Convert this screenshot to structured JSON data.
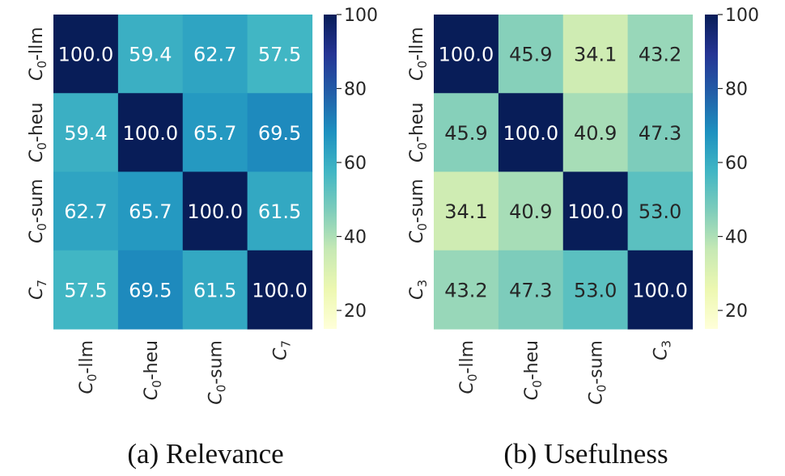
{
  "chart_data": [
    {
      "type": "heatmap",
      "caption": "(a) Relevance",
      "colormap": "YlGnBu",
      "clim": [
        15,
        100
      ],
      "colorbar_ticks": [
        20,
        40,
        60,
        80,
        100
      ],
      "labels": [
        {
          "base": "C",
          "sub": "0",
          "suffix": "-llm"
        },
        {
          "base": "C",
          "sub": "0",
          "suffix": "-heu"
        },
        {
          "base": "C",
          "sub": "0",
          "suffix": "-sum"
        },
        {
          "base": "C",
          "sub": "7",
          "suffix": ""
        }
      ],
      "values": [
        [
          100.0,
          59.4,
          62.7,
          57.5
        ],
        [
          59.4,
          100.0,
          65.7,
          69.5
        ],
        [
          62.7,
          65.7,
          100.0,
          61.5
        ],
        [
          57.5,
          69.5,
          61.5,
          100.0
        ]
      ]
    },
    {
      "type": "heatmap",
      "caption": "(b) Usefulness",
      "colormap": "YlGnBu",
      "clim": [
        15,
        100
      ],
      "colorbar_ticks": [
        20,
        40,
        60,
        80,
        100
      ],
      "labels": [
        {
          "base": "C",
          "sub": "0",
          "suffix": "-llm"
        },
        {
          "base": "C",
          "sub": "0",
          "suffix": "-heu"
        },
        {
          "base": "C",
          "sub": "0",
          "suffix": "-sum"
        },
        {
          "base": "C",
          "sub": "3",
          "suffix": ""
        }
      ],
      "values": [
        [
          100.0,
          45.9,
          34.1,
          43.2
        ],
        [
          45.9,
          100.0,
          40.9,
          47.3
        ],
        [
          34.1,
          40.9,
          100.0,
          53.0
        ],
        [
          43.2,
          47.3,
          53.0,
          100.0
        ]
      ]
    }
  ]
}
